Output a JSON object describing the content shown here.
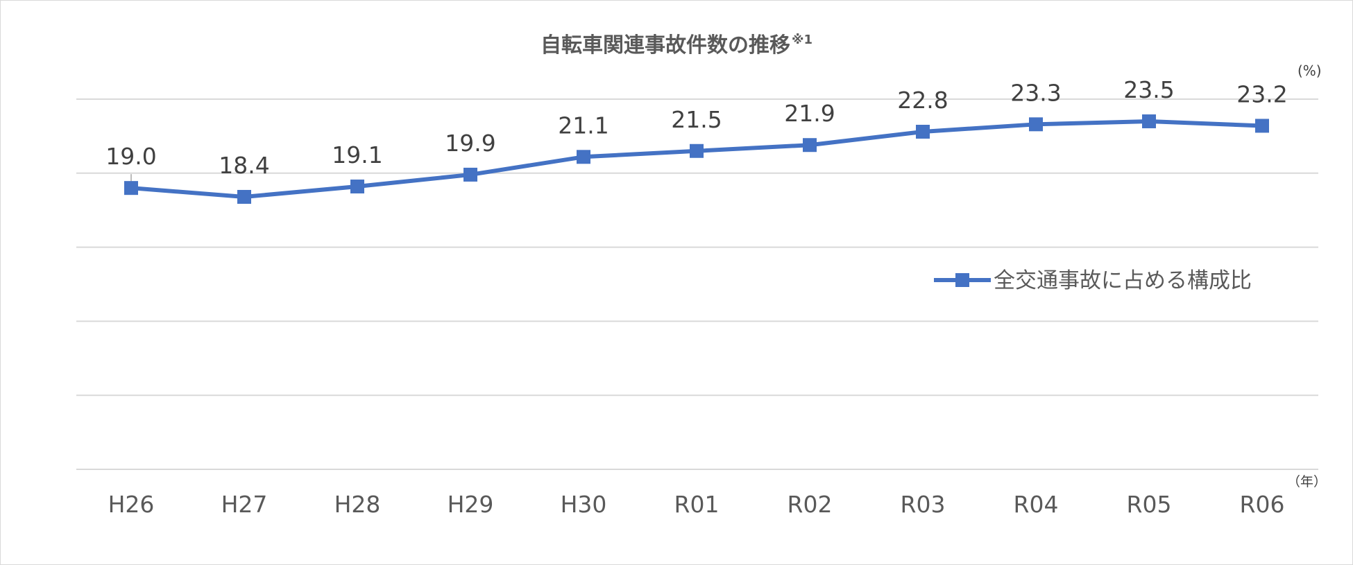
{
  "chart_data": {
    "type": "line",
    "title": "自転車関連事故件数の推移",
    "title_note": "※1",
    "ylabel": "(%)",
    "xlabel": "（年）",
    "categories": [
      "H26",
      "H27",
      "H28",
      "H29",
      "H30",
      "R01",
      "R02",
      "R03",
      "R04",
      "R05",
      "R06"
    ],
    "series": [
      {
        "name": "全交通事故に占める構成比",
        "color": "#4472c4",
        "values": [
          19.0,
          18.4,
          19.1,
          19.9,
          21.1,
          21.5,
          21.9,
          22.8,
          23.3,
          23.5,
          23.2
        ]
      }
    ],
    "ylim": [
      0,
      25
    ],
    "y_gridlines": [
      0,
      5,
      10,
      15,
      20,
      25
    ],
    "y_tick_labels_shown": false,
    "grid": true,
    "legend_position": "right-middle",
    "marker": "square"
  }
}
